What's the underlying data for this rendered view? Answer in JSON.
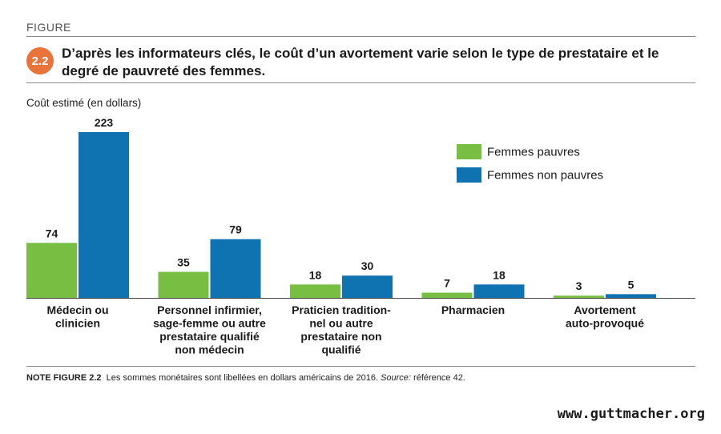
{
  "figure_label": "FIGURE",
  "figure_number": "2.2",
  "title": "D’après les informateurs clés, le coût d’un avortement varie selon le type de prestataire et le degré de pauvreté des femmes.",
  "colors": {
    "badge": "#e8743b",
    "poor": "#78be43",
    "nonpoor": "#0f73b1"
  },
  "chart_data": {
    "type": "bar",
    "ylabel": "Coût estimé (en dollars)",
    "ylim": [
      0,
      223
    ],
    "categories": [
      [
        "Médecin ou",
        "clinicien"
      ],
      [
        "Personnel infirmier,",
        "sage-femme ou autre",
        "prestataire qualifié",
        "non médecin"
      ],
      [
        "Praticien tradition-",
        "nel ou autre",
        "prestataire non",
        "qualifié"
      ],
      [
        "Pharmacien"
      ],
      [
        "Avortement",
        "auto-provoqué"
      ]
    ],
    "series": [
      {
        "name": "Femmes pauvres",
        "color": "#78be43",
        "values": [
          74,
          35,
          18,
          7,
          3
        ]
      },
      {
        "name": "Femmes non pauvres",
        "color": "#0f73b1",
        "values": [
          223,
          79,
          30,
          18,
          5
        ]
      }
    ],
    "legend_position": "top-right",
    "grid": false
  },
  "note": {
    "title": "NOTE FIGURE 2.2",
    "text": "Les sommes monétaires sont libellées en dollars américains de 2016.",
    "source_label": "Source:",
    "source_text": "référence 42."
  },
  "website": "www.guttmacher.org"
}
